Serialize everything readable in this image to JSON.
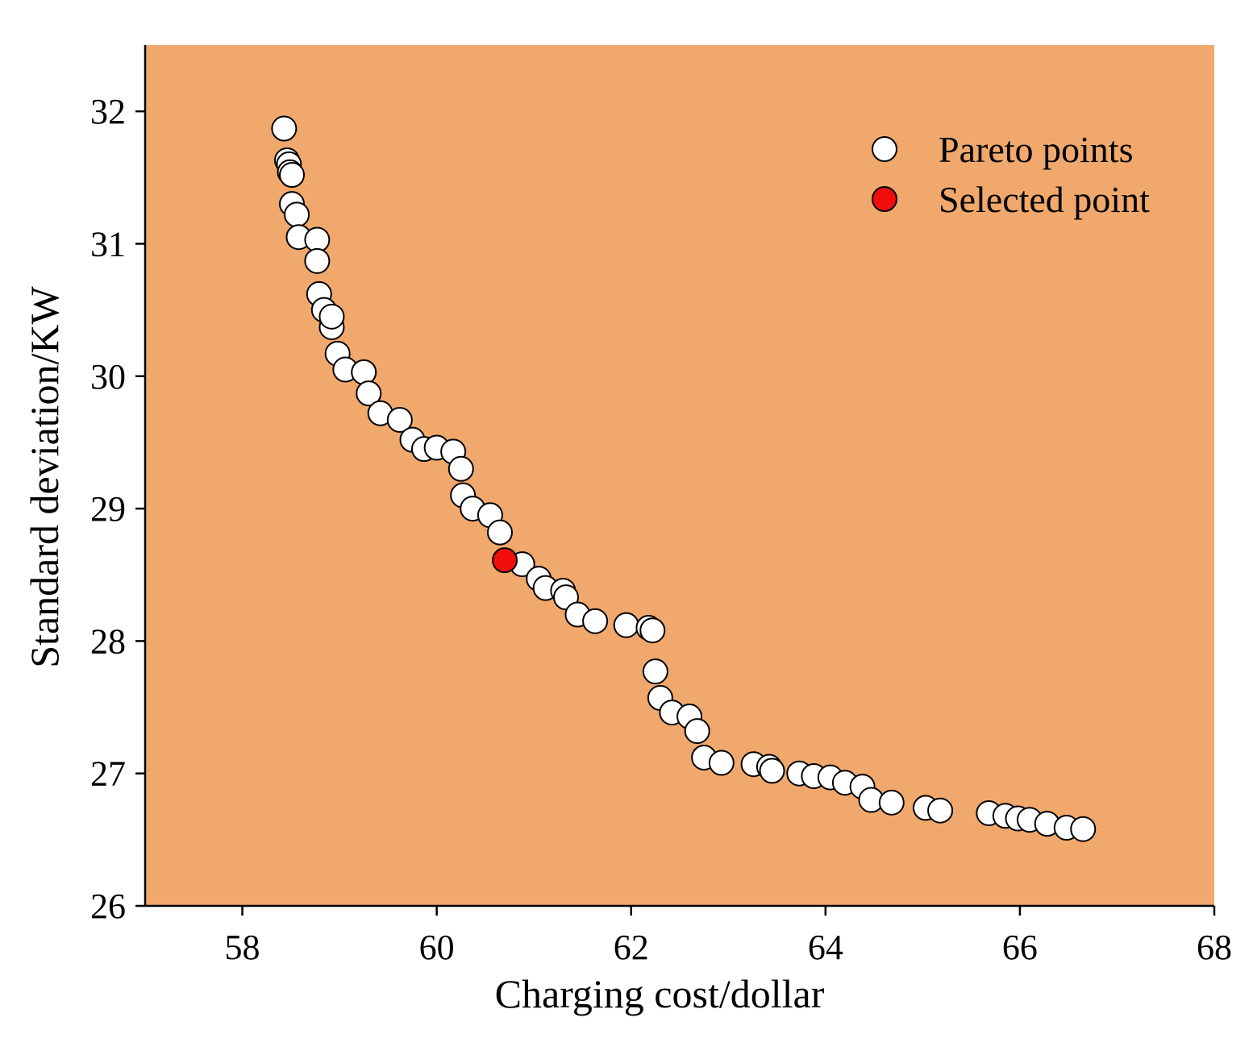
{
  "colors": {
    "plot_background": "#F1A86C",
    "pareto_fill": "#FFFFFF",
    "selected_fill": "#F20D0D",
    "marker_stroke": "#000000"
  },
  "chart_data": {
    "type": "scatter",
    "xlabel": "Charging cost/dollar",
    "ylabel": "Standard deviation/KW",
    "xlim": [
      57,
      68
    ],
    "ylim": [
      26,
      32.5
    ],
    "grid": false,
    "legend_position": "top-right",
    "x_ticks": [
      58,
      60,
      62,
      64,
      66,
      68
    ],
    "y_ticks": [
      26,
      27,
      28,
      29,
      30,
      31,
      32
    ],
    "x_tick_labels": [
      "58",
      "60",
      "62",
      "64",
      "66",
      "68"
    ],
    "y_tick_labels": [
      "26",
      "27",
      "28",
      "29",
      "30",
      "31",
      "32"
    ],
    "legend": [
      {
        "label": "Pareto points",
        "series": "pareto"
      },
      {
        "label": "Selected point",
        "series": "selected"
      }
    ],
    "series": [
      {
        "name": "Pareto points",
        "id": "pareto",
        "points": [
          [
            58.43,
            31.87
          ],
          [
            58.46,
            31.63
          ],
          [
            58.48,
            31.6
          ],
          [
            58.49,
            31.54
          ],
          [
            58.51,
            31.52
          ],
          [
            58.51,
            31.3
          ],
          [
            58.56,
            31.22
          ],
          [
            58.58,
            31.05
          ],
          [
            58.77,
            31.03
          ],
          [
            58.77,
            30.87
          ],
          [
            58.79,
            30.62
          ],
          [
            58.84,
            30.5
          ],
          [
            58.92,
            30.37
          ],
          [
            58.92,
            30.45
          ],
          [
            58.98,
            30.17
          ],
          [
            59.06,
            30.05
          ],
          [
            59.25,
            30.03
          ],
          [
            59.3,
            29.87
          ],
          [
            59.42,
            29.72
          ],
          [
            59.62,
            29.67
          ],
          [
            59.75,
            29.52
          ],
          [
            59.87,
            29.45
          ],
          [
            60.0,
            29.46
          ],
          [
            60.17,
            29.43
          ],
          [
            60.25,
            29.3
          ],
          [
            60.27,
            29.1
          ],
          [
            60.37,
            29.0
          ],
          [
            60.55,
            28.95
          ],
          [
            60.65,
            28.82
          ],
          [
            60.88,
            28.58
          ],
          [
            61.05,
            28.47
          ],
          [
            61.12,
            28.4
          ],
          [
            61.3,
            28.38
          ],
          [
            61.33,
            28.33
          ],
          [
            61.45,
            28.2
          ],
          [
            61.63,
            28.15
          ],
          [
            61.95,
            28.12
          ],
          [
            62.18,
            28.1
          ],
          [
            62.22,
            28.08
          ],
          [
            62.25,
            27.77
          ],
          [
            62.3,
            27.57
          ],
          [
            62.42,
            27.46
          ],
          [
            62.6,
            27.43
          ],
          [
            62.68,
            27.32
          ],
          [
            62.75,
            27.12
          ],
          [
            62.93,
            27.08
          ],
          [
            63.26,
            27.07
          ],
          [
            63.42,
            27.05
          ],
          [
            63.45,
            27.02
          ],
          [
            63.73,
            27.0
          ],
          [
            63.88,
            26.98
          ],
          [
            64.05,
            26.97
          ],
          [
            64.2,
            26.93
          ],
          [
            64.38,
            26.9
          ],
          [
            64.47,
            26.8
          ],
          [
            64.68,
            26.78
          ],
          [
            65.03,
            26.74
          ],
          [
            65.18,
            26.72
          ],
          [
            65.68,
            26.7
          ],
          [
            65.85,
            26.68
          ],
          [
            65.98,
            26.66
          ],
          [
            66.1,
            26.65
          ],
          [
            66.28,
            26.62
          ],
          [
            66.48,
            26.59
          ],
          [
            66.65,
            26.58
          ]
        ]
      },
      {
        "name": "Selected point",
        "id": "selected",
        "points": [
          [
            60.7,
            28.61
          ]
        ]
      }
    ]
  }
}
